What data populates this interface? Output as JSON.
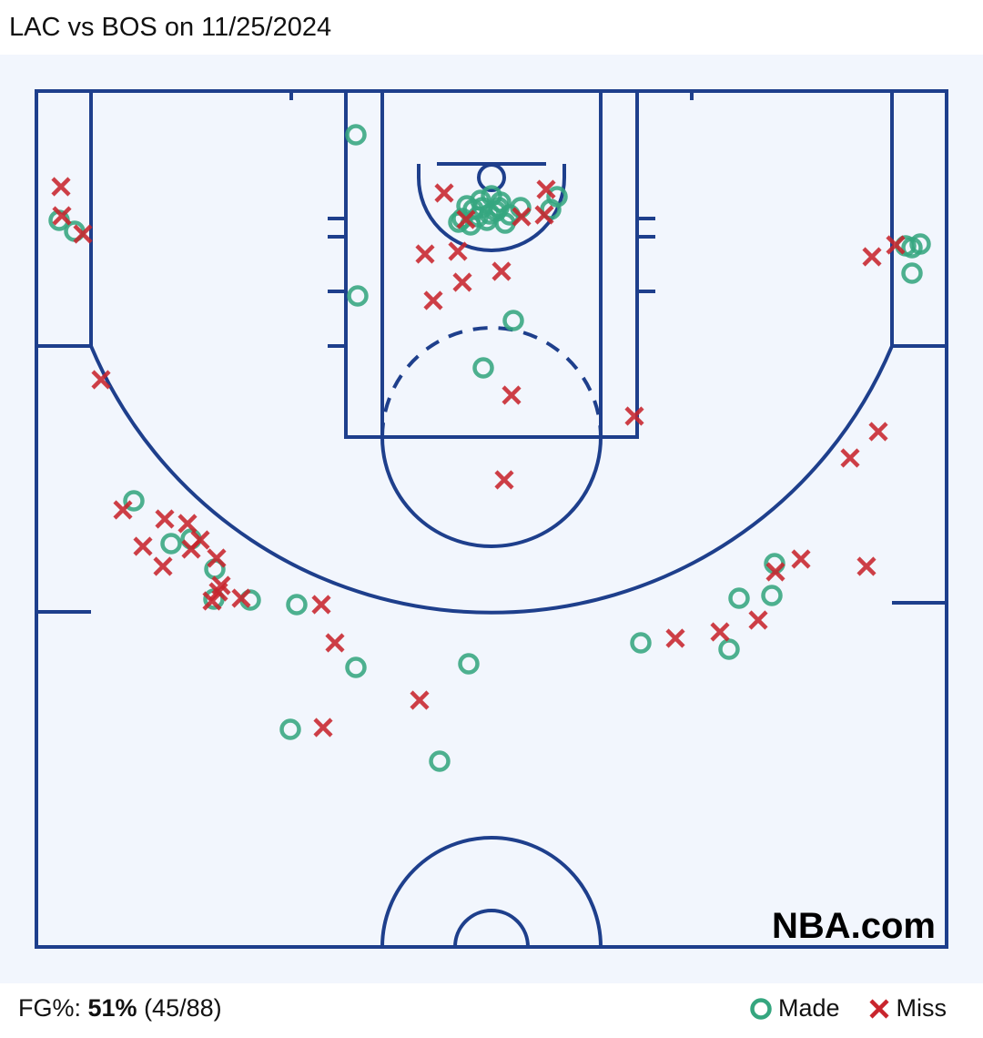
{
  "title": "LAC vs BOS on 11/25/2024",
  "watermark": "NBA.com",
  "footer": {
    "label": "FG%: ",
    "pct": "51%",
    "counts": " (45/88)"
  },
  "legend": {
    "made": "Made",
    "miss": "Miss"
  },
  "colors": {
    "made": "#35a67f",
    "miss": "#c9252d",
    "court_lines": "#1e3f8c",
    "court_bg": "#f2f6fd"
  },
  "chart_data": {
    "type": "scatter",
    "title": "LAC vs BOS on 11/25/2024",
    "xlim": [
      -250,
      250
    ],
    "ylim": [
      -47.5,
      422.5
    ],
    "grid": false,
    "legend_placement": "bottom-right",
    "series": [
      {
        "name": "Made",
        "marker": "circle",
        "points": [
          [
            -74.5,
            -23.5
          ],
          [
            -73.5,
            65
          ],
          [
            -237.5,
            23.5
          ],
          [
            -229,
            29.5
          ],
          [
            12,
            78.5
          ],
          [
            -4.5,
            104.5
          ],
          [
            -196.5,
            177.5
          ],
          [
            -176,
            201
          ],
          [
            -165,
            198.5
          ],
          [
            -152,
            215
          ],
          [
            -152.5,
            231.5
          ],
          [
            -132.5,
            232
          ],
          [
            -107,
            234.5
          ],
          [
            -74.5,
            269
          ],
          [
            -12.5,
            267
          ],
          [
            -110.5,
            303
          ],
          [
            -28.5,
            320.5
          ],
          [
            82,
            255.5
          ],
          [
            130.5,
            259
          ],
          [
            136,
            231
          ],
          [
            154,
            229.5
          ],
          [
            155.5,
            212
          ],
          [
            227.5,
            37.5
          ],
          [
            235.5,
            36.5
          ],
          [
            231,
            52.5
          ],
          [
            231,
            38.5
          ],
          [
            36,
            10.5
          ],
          [
            32.5,
            17.5
          ],
          [
            -18,
            24.5
          ],
          [
            -11.5,
            26
          ],
          [
            -13.5,
            15.5
          ],
          [
            -5,
            16.5
          ],
          [
            0,
            10
          ],
          [
            2.5,
            18.5
          ],
          [
            7.5,
            25
          ],
          [
            16,
            16.5
          ],
          [
            -1,
            20
          ],
          [
            4,
            16.5
          ],
          [
            -7.5,
            21.5
          ],
          [
            10,
            20.5
          ],
          [
            -2.5,
            23.5
          ],
          [
            -10,
            17.5
          ],
          [
            5,
            13.5
          ],
          [
            -6,
            12.5
          ],
          [
            -16,
            22.5
          ]
        ]
      },
      {
        "name": "Miss",
        "marker": "x",
        "points": [
          [
            -236.5,
            5
          ],
          [
            -236,
            21
          ],
          [
            -224.5,
            31
          ],
          [
            -214.5,
            111
          ],
          [
            -202.5,
            182.5
          ],
          [
            -179.5,
            187.5
          ],
          [
            -191.5,
            202.5
          ],
          [
            -167,
            190
          ],
          [
            -160,
            199
          ],
          [
            -165,
            204
          ],
          [
            -180.5,
            213.5
          ],
          [
            -151,
            209
          ],
          [
            -150,
            227.5
          ],
          [
            -153.5,
            232.5
          ],
          [
            -137.5,
            231
          ],
          [
            -93.5,
            234.5
          ],
          [
            -86,
            255.5
          ],
          [
            -92.5,
            302
          ],
          [
            -39.5,
            287
          ],
          [
            7,
            166
          ],
          [
            11,
            119.5
          ],
          [
            78.5,
            131
          ],
          [
            -36.5,
            42
          ],
          [
            -32,
            67.5
          ],
          [
            -16,
            57.5
          ],
          [
            -18.5,
            40.5
          ],
          [
            5.5,
            51.5
          ],
          [
            -26,
            8.5
          ],
          [
            -14,
            23
          ],
          [
            16.5,
            21.5
          ],
          [
            30,
            6.5
          ],
          [
            29,
            20.5
          ],
          [
            209,
            43.5
          ],
          [
            222,
            37
          ],
          [
            197,
            154
          ],
          [
            212.5,
            139.5
          ],
          [
            206,
            213.5
          ],
          [
            170,
            209.5
          ],
          [
            156,
            216.5
          ],
          [
            146.5,
            243
          ],
          [
            125.5,
            249.5
          ],
          [
            101,
            253
          ],
          [
            -148.5,
            224
          ]
        ]
      }
    ]
  }
}
